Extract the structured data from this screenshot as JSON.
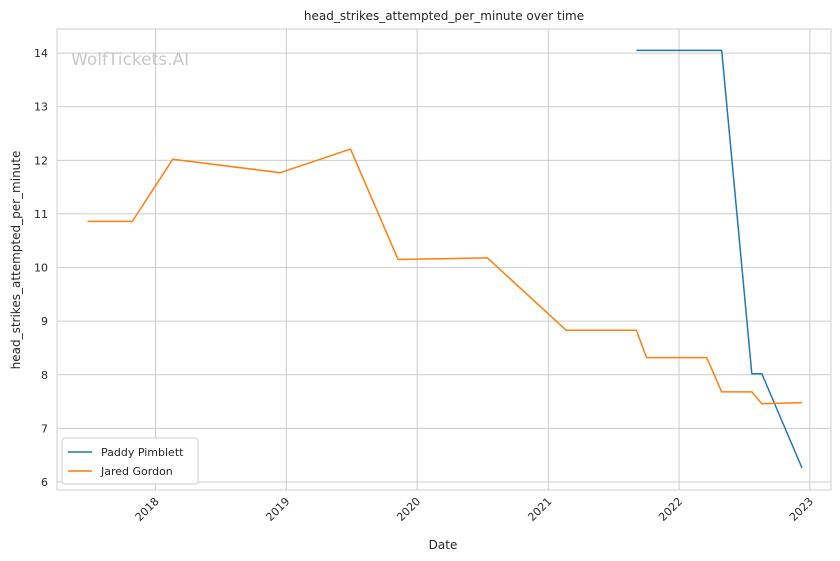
{
  "chart_data": {
    "type": "line",
    "title": "head_strikes_attempted_per_minute over time",
    "xlabel": "Date",
    "ylabel": "head_strikes_attempted_per_minute",
    "x_ticks": [
      "2018",
      "2019",
      "2020",
      "2021",
      "2022",
      "2023"
    ],
    "y_ticks": [
      6,
      7,
      8,
      9,
      10,
      11,
      12,
      13,
      14
    ],
    "xlim": [
      "2017-04-01",
      "2023-03-01"
    ],
    "ylim": [
      5.85,
      14.45
    ],
    "grid": true,
    "legend_position": "lower-left",
    "watermark": "WolfTickets.AI",
    "series": [
      {
        "name": "Paddy Pimblett",
        "color": "#1f77b4",
        "points": [
          {
            "x": "2021-09-04",
            "y": 14.05
          },
          {
            "x": "2022-03-19",
            "y": 14.05
          },
          {
            "x": "2022-04-30",
            "y": 14.05
          },
          {
            "x": "2022-07-23",
            "y": 8.02
          },
          {
            "x": "2022-08-20",
            "y": 8.02
          },
          {
            "x": "2022-12-10",
            "y": 6.26
          }
        ]
      },
      {
        "name": "Jared Gordon",
        "color": "#ff7f0e",
        "points": [
          {
            "x": "2017-06-25",
            "y": 10.86
          },
          {
            "x": "2017-10-28",
            "y": 10.86
          },
          {
            "x": "2018-02-18",
            "y": 12.02
          },
          {
            "x": "2018-12-15",
            "y": 11.77
          },
          {
            "x": "2019-06-29",
            "y": 12.21
          },
          {
            "x": "2019-11-09",
            "y": 10.15
          },
          {
            "x": "2020-07-15",
            "y": 10.18
          },
          {
            "x": "2021-02-20",
            "y": 8.83
          },
          {
            "x": "2021-09-04",
            "y": 8.83
          },
          {
            "x": "2021-10-02",
            "y": 8.32
          },
          {
            "x": "2022-03-19",
            "y": 8.32
          },
          {
            "x": "2022-04-30",
            "y": 7.68
          },
          {
            "x": "2022-07-23",
            "y": 7.68
          },
          {
            "x": "2022-08-20",
            "y": 7.46
          },
          {
            "x": "2022-12-10",
            "y": 7.48
          }
        ]
      }
    ]
  }
}
